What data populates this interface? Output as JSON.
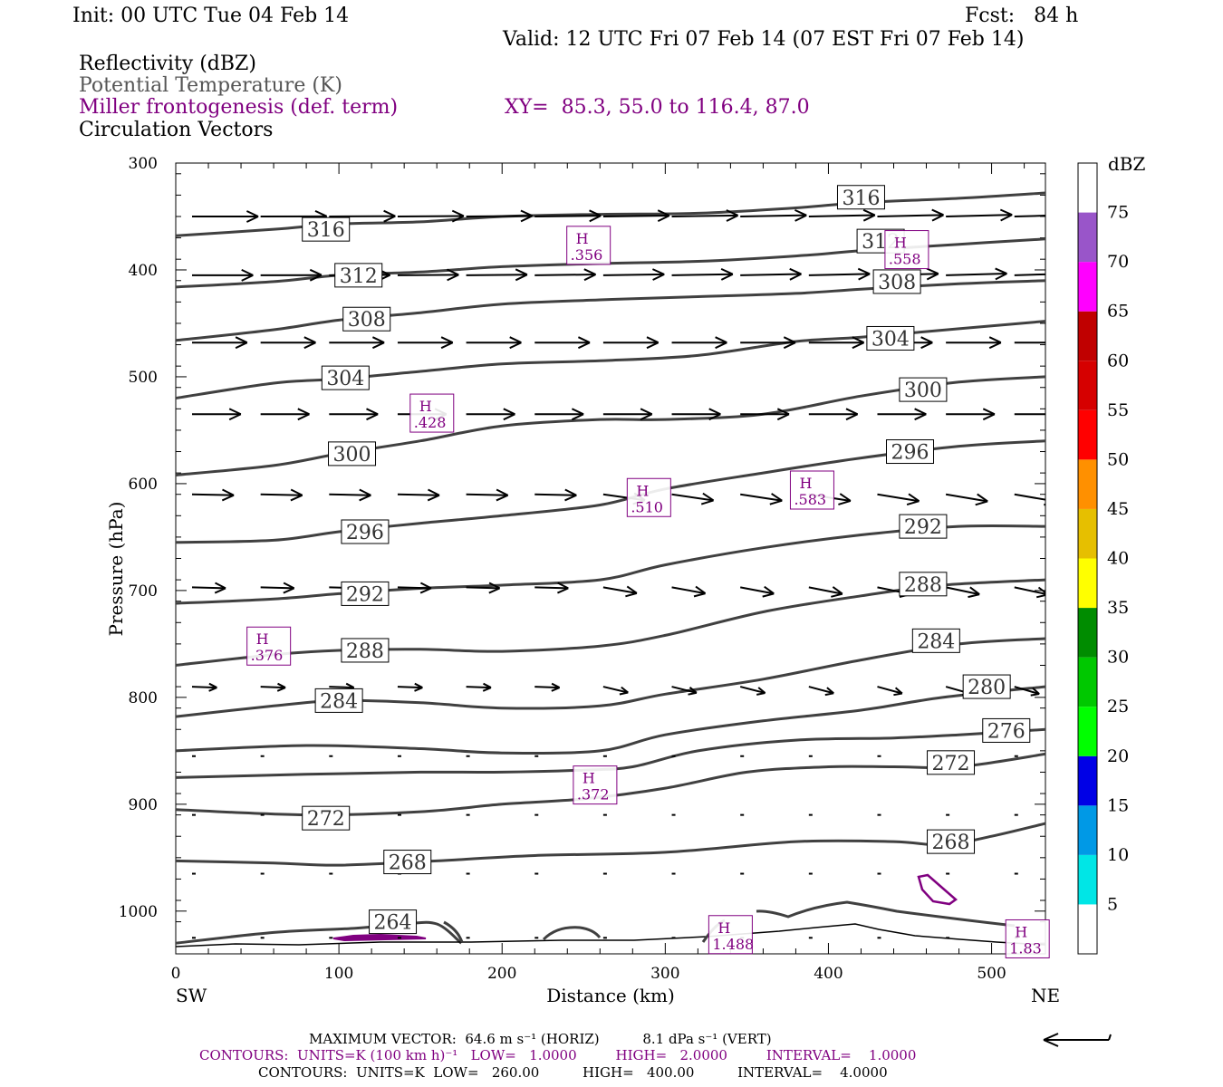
{
  "header": {
    "init": "Init: 00 UTC Tue 04 Feb 14",
    "fcst": "Fcst:   84 h",
    "valid": "Valid: 12 UTC Fri 07 Feb 14 (07 EST Fri 07 Feb 14)",
    "field1": "Reflectivity (dBZ)",
    "field2": "Potential Temperature (K)",
    "field3": "Miller frontogenesis (def. term)",
    "xy": "XY=  85.3, 55.0 to 116.4, 87.0",
    "field4": "Circulation Vectors"
  },
  "colors": {
    "theta": "#404040",
    "fronto": "#800080",
    "vector": "#000000"
  },
  "chart_data": {
    "type": "line",
    "xlabel": "Distance (km)",
    "ylabel": "Pressure (hPa)",
    "xlim": [
      0,
      533
    ],
    "ylim": [
      1040,
      300
    ],
    "x_ticks": [
      0,
      100,
      200,
      300,
      400,
      500
    ],
    "y_ticks": [
      300,
      400,
      500,
      600,
      700,
      800,
      900,
      1000
    ],
    "x_left_label": "SW",
    "x_right_label": "NE",
    "theta_contours": [
      {
        "value": 264,
        "points": [
          [
            0,
            1030
          ],
          [
            60,
            1020
          ],
          [
            110,
            1016
          ],
          [
            140,
            1012
          ],
          [
            160,
            1012
          ],
          [
            175,
            1030
          ]
        ],
        "labels": [
          [
            133,
            1010
          ]
        ]
      },
      {
        "value": 268,
        "points": [
          [
            0,
            953
          ],
          [
            60,
            955
          ],
          [
            100,
            957
          ],
          [
            160,
            953
          ],
          [
            220,
            948
          ],
          [
            300,
            945
          ],
          [
            380,
            935
          ],
          [
            440,
            935
          ],
          [
            470,
            938
          ],
          [
            500,
            930
          ],
          [
            533,
            918
          ]
        ],
        "labels": [
          [
            142,
            954
          ],
          [
            475,
            935
          ]
        ]
      },
      {
        "value": 272,
        "points": [
          [
            0,
            905
          ],
          [
            80,
            910
          ],
          [
            150,
            907
          ],
          [
            200,
            900
          ],
          [
            250,
            895
          ],
          [
            300,
            885
          ],
          [
            350,
            870
          ],
          [
            400,
            865
          ],
          [
            440,
            865
          ],
          [
            480,
            865
          ],
          [
            533,
            853
          ]
        ],
        "labels": [
          [
            92,
            913
          ],
          [
            475,
            861
          ]
        ]
      },
      {
        "value": 276,
        "points": [
          [
            0,
            875
          ],
          [
            80,
            872
          ],
          [
            150,
            870
          ],
          [
            200,
            870
          ],
          [
            250,
            868
          ],
          [
            280,
            865
          ],
          [
            320,
            850
          ],
          [
            380,
            840
          ],
          [
            440,
            838
          ],
          [
            480,
            835
          ],
          [
            533,
            830
          ]
        ],
        "labels": [
          [
            509,
            831
          ]
        ]
      },
      {
        "value": 280,
        "points": [
          [
            0,
            850
          ],
          [
            80,
            845
          ],
          [
            150,
            848
          ],
          [
            200,
            852
          ],
          [
            260,
            850
          ],
          [
            300,
            835
          ],
          [
            360,
            822
          ],
          [
            420,
            812
          ],
          [
            470,
            800
          ],
          [
            533,
            790
          ]
        ],
        "labels": [
          [
            497,
            790
          ]
        ]
      },
      {
        "value": 284,
        "points": [
          [
            0,
            818
          ],
          [
            60,
            808
          ],
          [
            100,
            803
          ],
          [
            150,
            805
          ],
          [
            200,
            810
          ],
          [
            260,
            808
          ],
          [
            300,
            797
          ],
          [
            360,
            783
          ],
          [
            420,
            765
          ],
          [
            480,
            750
          ],
          [
            533,
            745
          ]
        ],
        "labels": [
          [
            100,
            803
          ],
          [
            466,
            747
          ]
        ]
      },
      {
        "value": 288,
        "points": [
          [
            0,
            770
          ],
          [
            60,
            760
          ],
          [
            100,
            756
          ],
          [
            150,
            755
          ],
          [
            200,
            757
          ],
          [
            260,
            752
          ],
          [
            300,
            742
          ],
          [
            360,
            720
          ],
          [
            420,
            705
          ],
          [
            470,
            695
          ],
          [
            533,
            690
          ]
        ],
        "labels": [
          [
            116,
            756
          ],
          [
            458,
            694
          ]
        ]
      },
      {
        "value": 292,
        "points": [
          [
            0,
            712
          ],
          [
            60,
            708
          ],
          [
            100,
            703
          ],
          [
            150,
            698
          ],
          [
            200,
            695
          ],
          [
            260,
            690
          ],
          [
            300,
            676
          ],
          [
            360,
            660
          ],
          [
            420,
            648
          ],
          [
            480,
            640
          ],
          [
            533,
            640
          ]
        ],
        "labels": [
          [
            116,
            703
          ],
          [
            458,
            640
          ]
        ]
      },
      {
        "value": 296,
        "points": [
          [
            0,
            655
          ],
          [
            60,
            653
          ],
          [
            100,
            645
          ],
          [
            150,
            637
          ],
          [
            200,
            630
          ],
          [
            260,
            620
          ],
          [
            300,
            605
          ],
          [
            360,
            590
          ],
          [
            420,
            576
          ],
          [
            480,
            565
          ],
          [
            533,
            560
          ]
        ],
        "labels": [
          [
            116,
            645
          ],
          [
            450,
            570
          ]
        ]
      },
      {
        "value": 300,
        "points": [
          [
            0,
            592
          ],
          [
            60,
            583
          ],
          [
            100,
            572
          ],
          [
            150,
            560
          ],
          [
            200,
            546
          ],
          [
            260,
            540
          ],
          [
            300,
            540
          ],
          [
            360,
            535
          ],
          [
            420,
            518
          ],
          [
            480,
            505
          ],
          [
            533,
            500
          ]
        ],
        "labels": [
          [
            108,
            572
          ],
          [
            458,
            512
          ]
        ]
      },
      {
        "value": 304,
        "points": [
          [
            0,
            520
          ],
          [
            60,
            506
          ],
          [
            100,
            502
          ],
          [
            150,
            495
          ],
          [
            200,
            488
          ],
          [
            260,
            485
          ],
          [
            320,
            480
          ],
          [
            380,
            467
          ],
          [
            420,
            463
          ],
          [
            480,
            455
          ],
          [
            533,
            448
          ]
        ],
        "labels": [
          [
            104,
            501
          ],
          [
            438,
            464
          ]
        ]
      },
      {
        "value": 308,
        "points": [
          [
            0,
            466
          ],
          [
            60,
            456
          ],
          [
            100,
            447
          ],
          [
            150,
            440
          ],
          [
            200,
            432
          ],
          [
            260,
            428
          ],
          [
            320,
            425
          ],
          [
            380,
            422
          ],
          [
            420,
            418
          ],
          [
            480,
            413
          ],
          [
            533,
            410
          ]
        ],
        "labels": [
          [
            117,
            446
          ],
          [
            442,
            411
          ]
        ]
      },
      {
        "value": 312,
        "points": [
          [
            0,
            416
          ],
          [
            60,
            411
          ],
          [
            100,
            405
          ],
          [
            150,
            402
          ],
          [
            200,
            397
          ],
          [
            260,
            394
          ],
          [
            320,
            392
          ],
          [
            380,
            387
          ],
          [
            420,
            382
          ],
          [
            480,
            376
          ],
          [
            533,
            371
          ]
        ],
        "labels": [
          [
            112,
            405
          ],
          [
            432,
            373
          ]
        ]
      },
      {
        "value": 316,
        "points": [
          [
            0,
            368
          ],
          [
            60,
            362
          ],
          [
            100,
            357
          ],
          [
            150,
            355
          ],
          [
            200,
            350
          ],
          [
            260,
            348
          ],
          [
            320,
            347
          ],
          [
            380,
            342
          ],
          [
            420,
            337
          ],
          [
            480,
            333
          ],
          [
            533,
            328
          ]
        ],
        "labels": [
          [
            92,
            362
          ],
          [
            420,
            332
          ]
        ]
      }
    ],
    "fronto_highs": [
      {
        "label": "H",
        "value": ".376",
        "x": 57,
        "y": 752
      },
      {
        "label": "H",
        "value": ".428",
        "x": 157,
        "y": 534
      },
      {
        "label": "H",
        "value": ".356",
        "x": 253,
        "y": 377
      },
      {
        "label": "H",
        "value": ".510",
        "x": 290,
        "y": 613
      },
      {
        "label": "H",
        "value": ".583",
        "x": 390,
        "y": 606
      },
      {
        "label": "H",
        "value": ".558",
        "x": 448,
        "y": 381
      },
      {
        "label": "H",
        "value": ".372",
        "x": 257,
        "y": 882
      },
      {
        "label": "H",
        "value": "1.488",
        "x": 340,
        "y": 1022
      },
      {
        "label": "H",
        "value": "1.83",
        "x": 522,
        "y": 1026
      }
    ],
    "vector_rows": [
      350,
      405,
      468,
      535,
      610,
      697,
      790,
      855,
      910,
      965,
      1025
    ],
    "vector_cols": [
      10,
      52,
      94,
      136,
      178,
      220,
      262,
      304,
      346,
      388,
      430,
      472,
      514
    ]
  },
  "colorbar": {
    "unit": "dBZ",
    "levels": [
      "5",
      "10",
      "15",
      "20",
      "25",
      "30",
      "35",
      "40",
      "45",
      "50",
      "55",
      "60",
      "65",
      "70",
      "75"
    ],
    "colors": [
      "#ffffff",
      "#00e6e6",
      "#0099e6",
      "#0000e6",
      "#00ff00",
      "#00c800",
      "#008c00",
      "#ffff00",
      "#e6bf00",
      "#ff9000",
      "#ff0000",
      "#d60000",
      "#c00000",
      "#ff00ff",
      "#9955c9",
      "#ffffff"
    ]
  },
  "footer": {
    "max_vector": "MAXIMUM VECTOR:  64.6 m s⁻¹ (HORIZ)          8.1 dPa s⁻¹ (VERT)",
    "contours_fronto": "CONTOURS:  UNITS=K (100 km h)⁻¹   LOW=   1.0000         HIGH=   2.0000         INTERVAL=    1.0000",
    "contours_theta": "CONTOURS:  UNITS=K  LOW=   260.00          HIGH=   400.00          INTERVAL=    4.0000"
  }
}
